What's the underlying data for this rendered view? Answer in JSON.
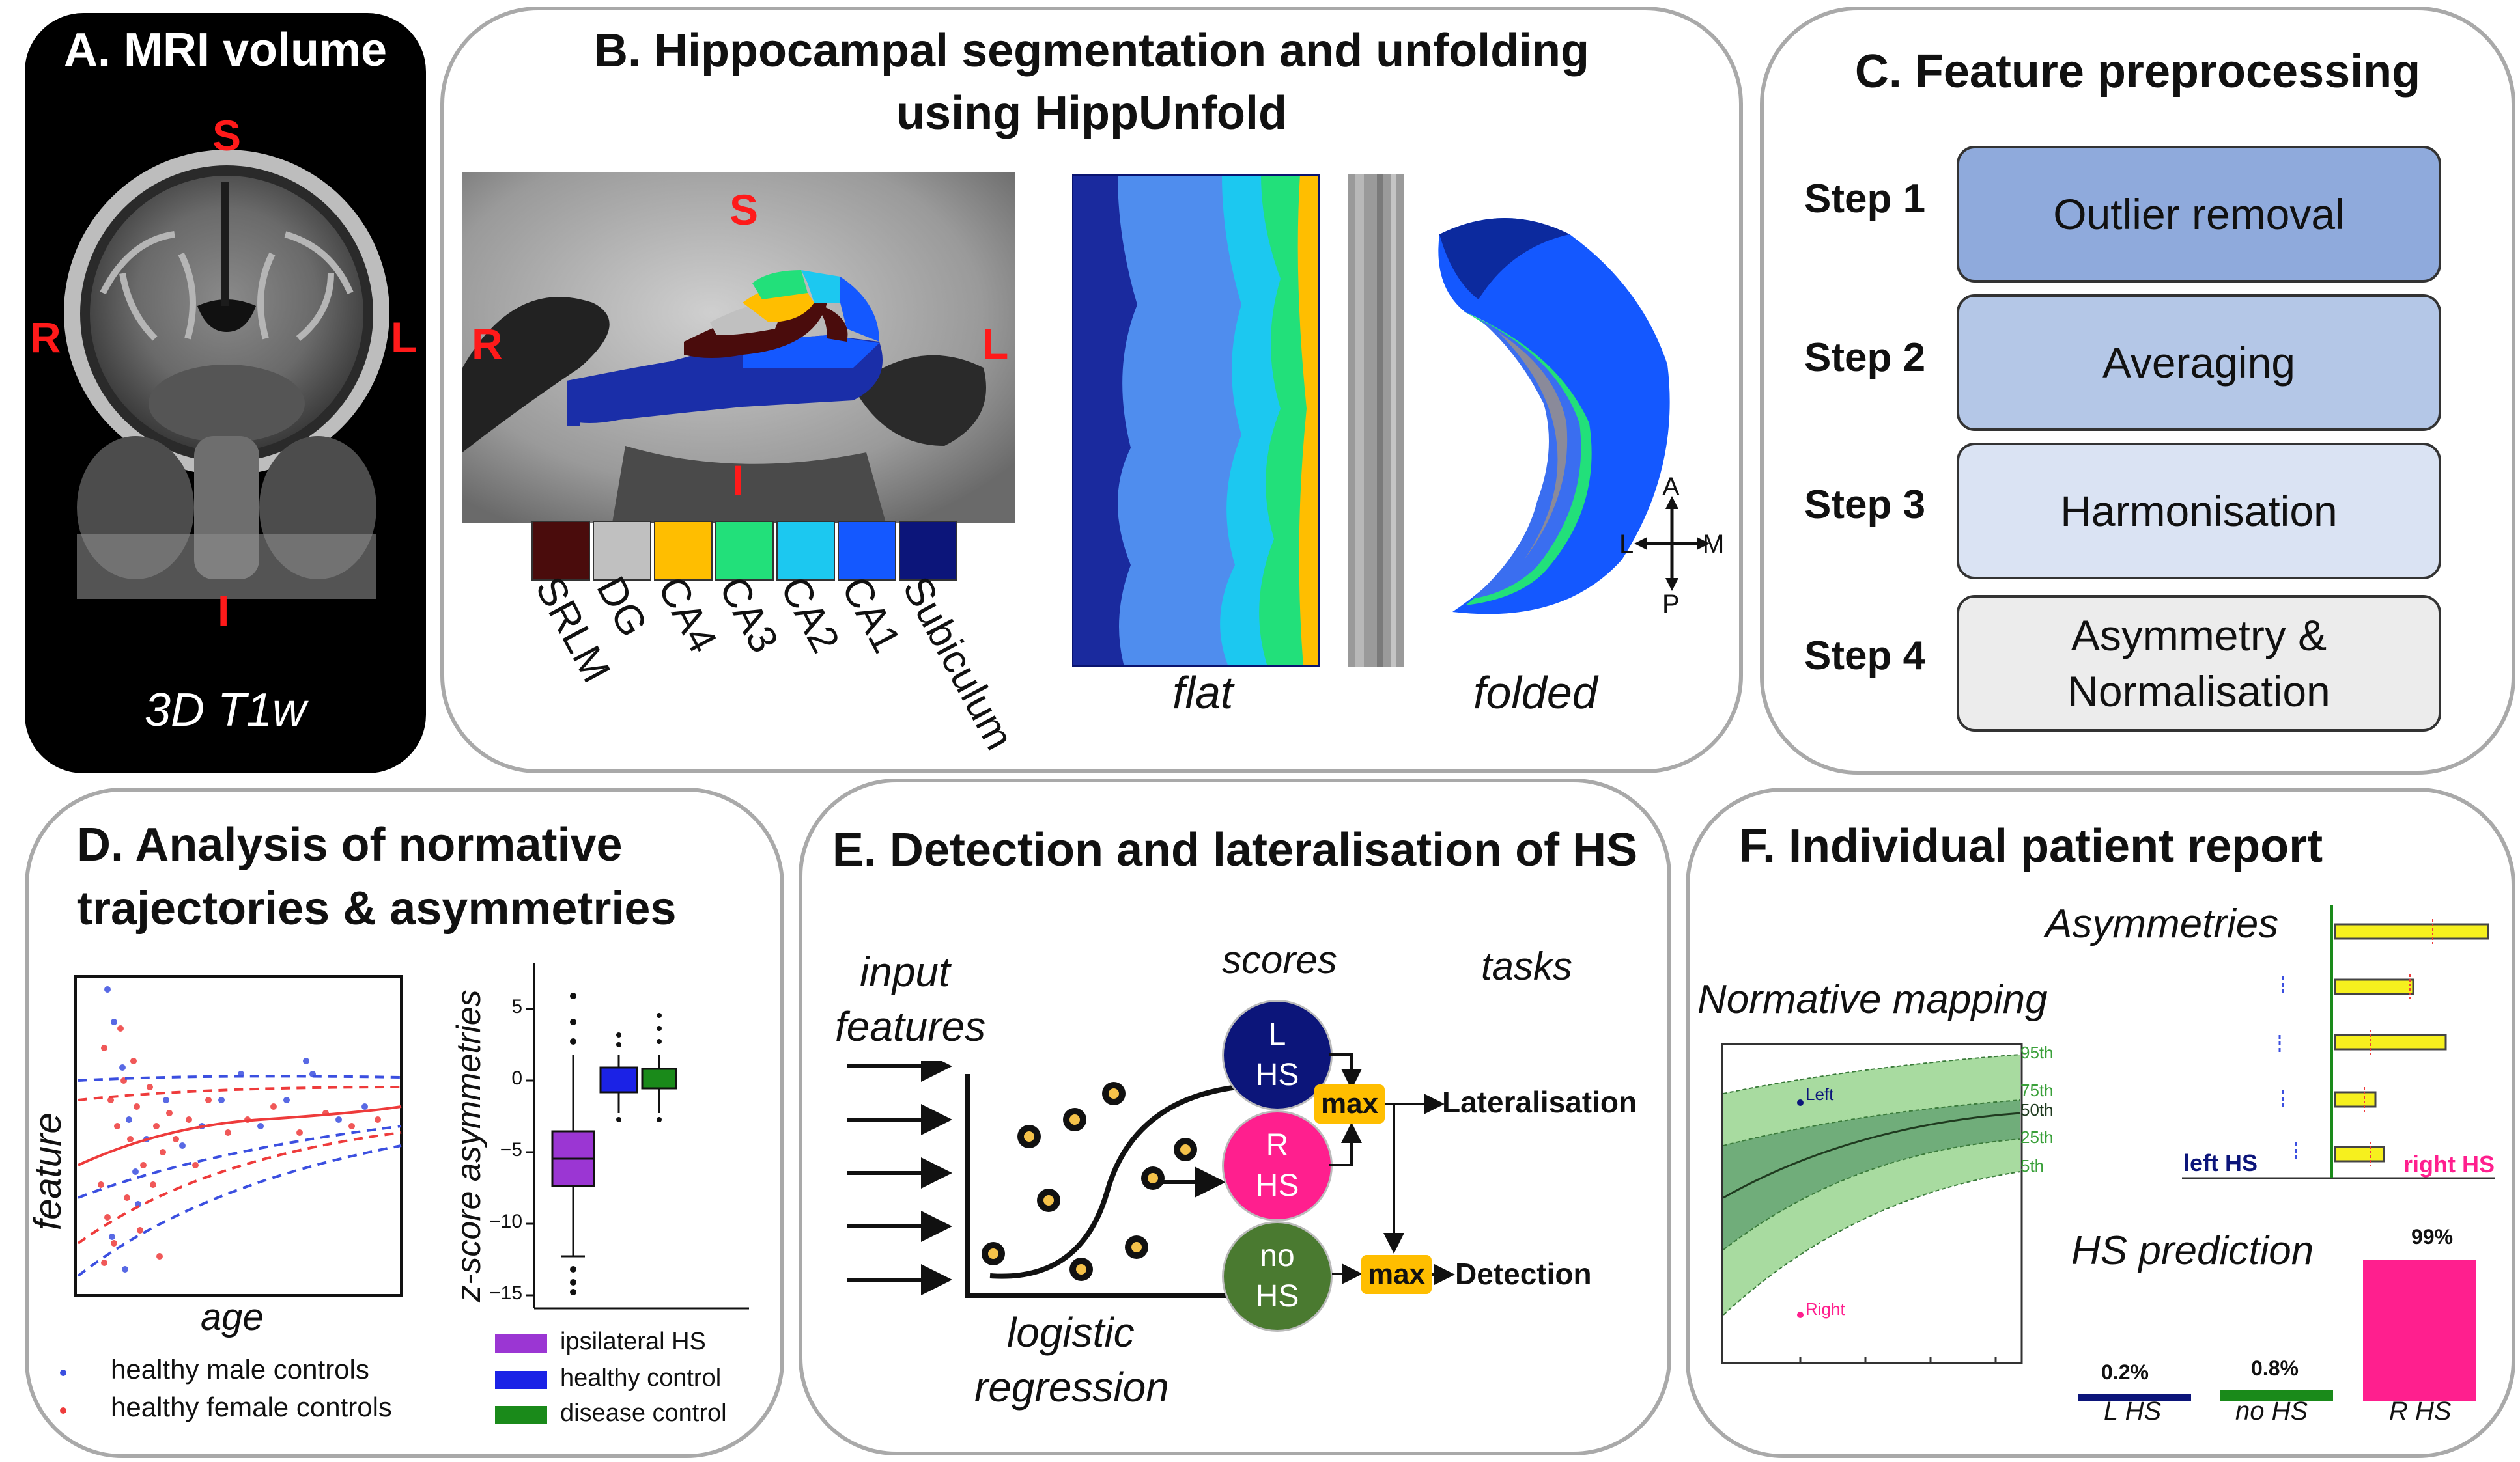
{
  "panel_a": {
    "title": "A. MRI volume",
    "orientation": {
      "s": "S",
      "r": "R",
      "l": "L",
      "i": "I"
    },
    "caption": "3D T1w"
  },
  "panel_b": {
    "title_line1": "B. Hippocampal segmentation and unfolding",
    "title_line2": "using HippUnfold",
    "orientation": {
      "s": "S",
      "r": "R",
      "l": "L",
      "i": "I"
    },
    "subfields": [
      {
        "label": "SRLM",
        "color": "#4a0c0c"
      },
      {
        "label": "DG",
        "color": "#c0c0c0"
      },
      {
        "label": "CA4",
        "color": "#ffbe00"
      },
      {
        "label": "CA3",
        "color": "#22e07a"
      },
      {
        "label": "CA2",
        "color": "#1cc8f0"
      },
      {
        "label": "CA1",
        "color": "#1458ff"
      },
      {
        "label": "Subiculum",
        "color": "#0c157a"
      }
    ],
    "flat_label": "flat",
    "folded_label": "folded",
    "compass": {
      "a": "A",
      "p": "P",
      "l": "L",
      "m": "M"
    }
  },
  "panel_c": {
    "title": "C. Feature preprocessing",
    "steps": [
      {
        "label": "Step 1",
        "text": "Outlier removal",
        "color": "#8faadc"
      },
      {
        "label": "Step 2",
        "text": "Averaging",
        "color": "#b4c7e7"
      },
      {
        "label": "Step 3",
        "text": "Harmonisation",
        "color": "#dae3f3"
      },
      {
        "label": "Step 4",
        "text_line1": "Asymmetry &",
        "text_line2": "Normalisation",
        "color": "#ececec"
      }
    ]
  },
  "panel_d": {
    "title_line1": "D. Analysis of normative",
    "title_line2": "trajectories & asymmetries",
    "scatter": {
      "xlabel": "age",
      "ylabel": "feature"
    },
    "legend_scatter": [
      {
        "label": "healthy male controls",
        "color": "#3b4fe0"
      },
      {
        "label": "healthy female controls",
        "color": "#ee3b3b"
      }
    ],
    "boxplot": {
      "ylabel": "z-score asymmetries",
      "ticks": [
        "5",
        "0",
        "−5",
        "−10",
        "−15"
      ]
    },
    "legend_box": [
      {
        "label": "ipsilateral HS",
        "color": "#9b36d3"
      },
      {
        "label": "healthy control",
        "color": "#1b22e6"
      },
      {
        "label": "disease control",
        "color": "#1a8a1a"
      }
    ]
  },
  "panel_e": {
    "title": "E. Detection and lateralisation of HS",
    "input_line1": "input",
    "input_line2": "features",
    "reg_line1": "logistic",
    "reg_line2": "regression",
    "scores_label": "scores",
    "tasks_label": "tasks",
    "circles": [
      {
        "line1": "L",
        "line2": "HS",
        "color": "#0c157a"
      },
      {
        "line1": "R",
        "line2": "HS",
        "color": "#ff1f8e"
      },
      {
        "line1": "no",
        "line2": "HS",
        "color": "#4a7a30"
      }
    ],
    "max_label": "max",
    "lateralisation": "Lateralisation",
    "detection": "Detection"
  },
  "panel_f": {
    "title": "F. Individual patient report",
    "asym_label": "Asymmetries",
    "left_hs": "left HS",
    "right_hs": "right HS",
    "norm_label": "Normative mapping",
    "percentiles": [
      "95th",
      "75th",
      "50th",
      "25th",
      "5th"
    ],
    "point_left": "Left",
    "point_right": "Right",
    "pred_label": "HS prediction",
    "predictions": [
      {
        "label": "L HS",
        "value": 0.2,
        "text": "0.2%",
        "color": "#0c157a"
      },
      {
        "label": "no HS",
        "value": 0.8,
        "text": "0.8%",
        "color": "#1a8a1a"
      },
      {
        "label": "R HS",
        "value": 99,
        "text": "99%",
        "color": "#ff1f8e"
      }
    ]
  }
}
